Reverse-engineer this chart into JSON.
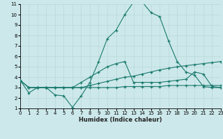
{
  "x_values": [
    0,
    1,
    2,
    3,
    4,
    5,
    6,
    7,
    8,
    9,
    10,
    11,
    12,
    13,
    14,
    15,
    16,
    17,
    18,
    19,
    20,
    21,
    22,
    23
  ],
  "line_main": [
    3.7,
    2.5,
    3.0,
    3.0,
    2.3,
    2.2,
    1.1,
    2.2,
    3.5,
    5.5,
    7.7,
    8.5,
    10.0,
    11.2,
    11.2,
    10.2,
    9.8,
    7.5,
    5.5,
    4.5,
    4.2,
    3.1,
    3.0,
    3.0
  ],
  "line_upper": [
    3.7,
    3.0,
    3.0,
    3.0,
    3.0,
    3.0,
    3.0,
    3.5,
    4.0,
    4.5,
    5.0,
    5.3,
    5.5,
    3.5,
    3.5,
    3.5,
    3.5,
    3.6,
    3.7,
    3.8,
    4.5,
    4.3,
    3.1,
    3.0
  ],
  "line_mid": [
    3.7,
    3.0,
    3.0,
    3.0,
    3.0,
    3.0,
    3.0,
    3.0,
    3.2,
    3.4,
    3.6,
    3.8,
    4.0,
    4.1,
    4.3,
    4.5,
    4.7,
    4.85,
    5.0,
    5.1,
    5.2,
    5.3,
    5.4,
    5.5
  ],
  "line_flat": [
    3.7,
    3.0,
    3.0,
    3.0,
    3.0,
    3.0,
    3.0,
    3.0,
    3.0,
    3.0,
    3.0,
    3.0,
    3.1,
    3.1,
    3.1,
    3.1,
    3.1,
    3.2,
    3.2,
    3.2,
    3.2,
    3.2,
    3.2,
    3.2
  ],
  "line_color": "#1a7a6e",
  "bg_color": "#cce8ea",
  "grid_color": "#b8d8da",
  "xlabel": "Humidex (Indice chaleur)",
  "xlim": [
    0,
    23
  ],
  "ylim": [
    1,
    11
  ],
  "yticks": [
    1,
    2,
    3,
    4,
    5,
    6,
    7,
    8,
    9,
    10,
    11
  ],
  "xticks": [
    0,
    1,
    2,
    3,
    4,
    5,
    6,
    7,
    8,
    9,
    10,
    11,
    12,
    13,
    14,
    15,
    16,
    17,
    18,
    19,
    20,
    21,
    22,
    23
  ]
}
